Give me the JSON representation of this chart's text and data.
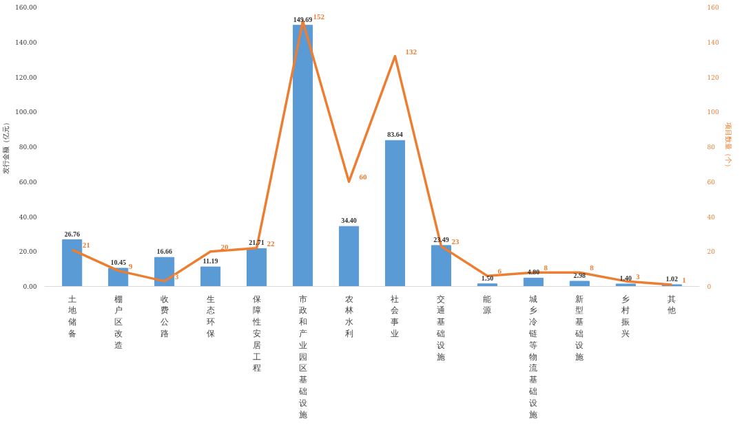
{
  "chart_data": {
    "type": "bar",
    "categories": [
      "土地储备",
      "棚户区改造",
      "收费公路",
      "生态环保",
      "保障性安居工程",
      "市政和产业园区基础设施",
      "农林水利",
      "社会事业",
      "交通基础设施",
      "能源",
      "城乡冷链等物流基础设施",
      "新型基础设施",
      "乡村振兴",
      "其他"
    ],
    "ylabel": "发行金额（亿元）",
    "y2label": "项目数量（个）",
    "ylim": [
      0,
      160
    ],
    "yticks": [
      {
        "value": 0,
        "label": "0.00"
      },
      {
        "value": 20,
        "label": "20.00"
      },
      {
        "value": 40,
        "label": "40.00"
      },
      {
        "value": 60,
        "label": "60.00"
      },
      {
        "value": 80,
        "label": "80.00"
      },
      {
        "value": 100,
        "label": "100.00"
      },
      {
        "value": 120,
        "label": "120.00"
      },
      {
        "value": 140,
        "label": "140.00"
      },
      {
        "value": 160,
        "label": "160.00"
      }
    ],
    "y2lim": [
      0,
      160
    ],
    "y2ticks": [
      0,
      20,
      40,
      60,
      80,
      100,
      120,
      140,
      160
    ],
    "grid": false,
    "data_labels": true,
    "series": [
      {
        "color": "#5b9bd5",
        "values": [
          26.76,
          10.45,
          16.66,
          11.19,
          21.71,
          149.69,
          34.4,
          83.64,
          23.49,
          1.5,
          4.8,
          2.98,
          1.4,
          1.02
        ],
        "value_labels": [
          "26.76",
          "10.45",
          "16.66",
          "11.19",
          "21.71",
          "149.69",
          "34.40",
          "83.64",
          "23.49",
          "1.50",
          "4.80",
          "2.98",
          "1.40",
          "1.02"
        ]
      },
      {
        "type": "line",
        "axis": "y2",
        "color": "#ed7d31",
        "marker": "none",
        "line_style": "solid",
        "values": [
          21,
          9,
          3,
          20,
          22,
          152,
          60,
          132,
          23,
          6,
          8,
          8,
          3,
          1
        ]
      }
    ]
  }
}
